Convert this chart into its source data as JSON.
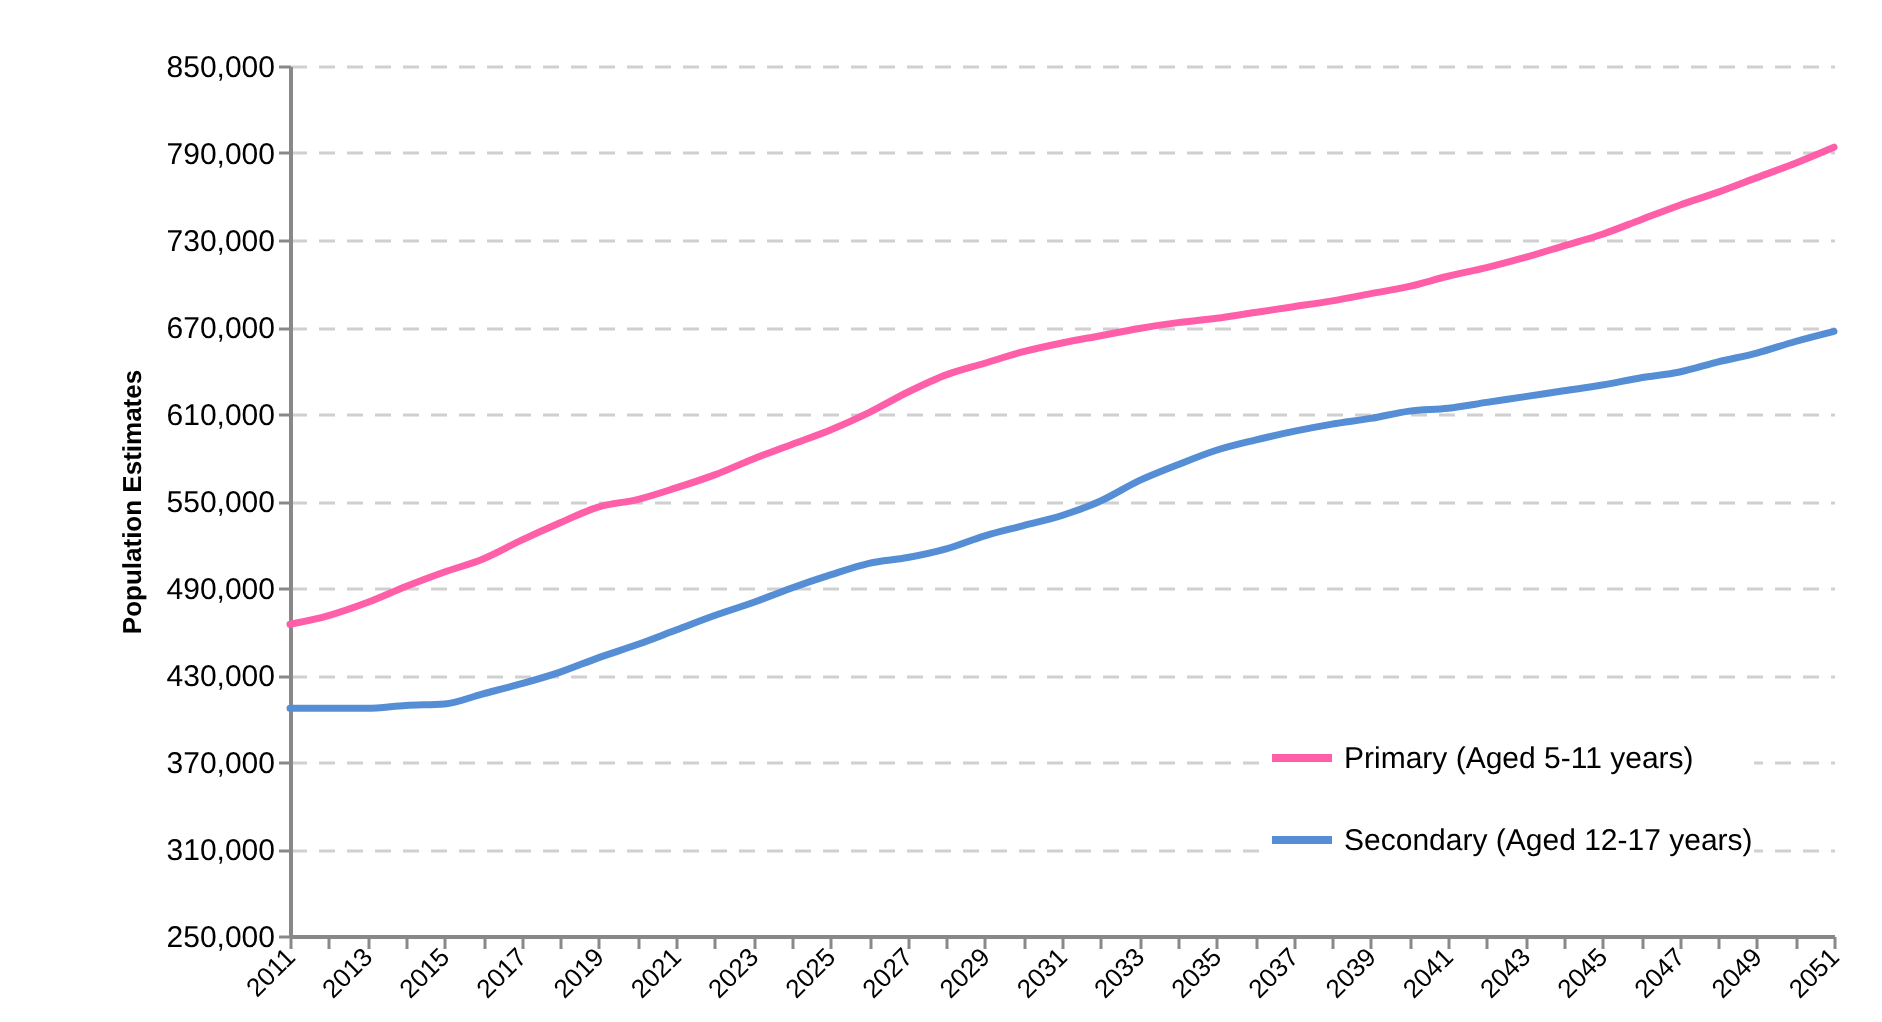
{
  "chart_data": {
    "type": "line",
    "ylabel": "Population Estimates",
    "x": [
      2011,
      2012,
      2013,
      2014,
      2015,
      2016,
      2017,
      2018,
      2019,
      2020,
      2021,
      2022,
      2023,
      2024,
      2025,
      2026,
      2027,
      2028,
      2029,
      2030,
      2031,
      2032,
      2033,
      2034,
      2035,
      2036,
      2037,
      2038,
      2039,
      2040,
      2041,
      2042,
      2043,
      2044,
      2045,
      2046,
      2047,
      2048,
      2049,
      2050,
      2051
    ],
    "series": [
      {
        "name": "Primary (Aged 5-11 years)",
        "color": "#ff5fa8",
        "values": [
          465000,
          471000,
          480000,
          491000,
          501000,
          510000,
          523000,
          535000,
          546000,
          551000,
          559000,
          568000,
          579000,
          589000,
          599000,
          611000,
          625000,
          637000,
          645000,
          653000,
          659000,
          664000,
          669000,
          673000,
          676000,
          680000,
          684000,
          688000,
          693000,
          698000,
          705000,
          711000,
          718000,
          726000,
          734000,
          744000,
          754000,
          763000,
          773000,
          783000,
          794000
        ]
      },
      {
        "name": "Secondary (Aged 12-17 years)",
        "color": "#558ed5",
        "values": [
          407000,
          407000,
          407000,
          409000,
          410000,
          417000,
          424000,
          432000,
          442000,
          451000,
          461000,
          471000,
          480000,
          490000,
          499000,
          507000,
          511000,
          517000,
          526000,
          533000,
          540000,
          550000,
          564000,
          575000,
          585000,
          592000,
          598000,
          603000,
          607000,
          612000,
          614000,
          618000,
          622000,
          626000,
          630000,
          635000,
          639000,
          646000,
          652000,
          660000,
          667000
        ]
      }
    ],
    "xlim": [
      2011,
      2051
    ],
    "xticks": [
      2011,
      {
        "value": 2012,
        "label": null
      },
      2013,
      {
        "value": 2014,
        "label": null
      },
      2015,
      {
        "value": 2016,
        "label": null
      },
      2017,
      {
        "value": 2018,
        "label": null
      },
      2019,
      {
        "value": 2020,
        "label": null
      },
      2021,
      {
        "value": 2022,
        "label": null
      },
      2023,
      {
        "value": 2024,
        "label": null
      },
      2025,
      {
        "value": 2026,
        "label": null
      },
      2027,
      {
        "value": 2028,
        "label": null
      },
      2029,
      {
        "value": 2030,
        "label": null
      },
      2031,
      {
        "value": 2032,
        "label": null
      },
      2033,
      {
        "value": 2034,
        "label": null
      },
      2035,
      {
        "value": 2036,
        "label": null
      },
      2037,
      {
        "value": 2038,
        "label": null
      },
      2039,
      {
        "value": 2040,
        "label": null
      },
      2041,
      {
        "value": 2042,
        "label": null
      },
      2043,
      {
        "value": 2044,
        "label": null
      },
      2045,
      {
        "value": 2046,
        "label": null
      },
      2047,
      {
        "value": 2048,
        "label": null
      },
      2049,
      {
        "value": 2050,
        "label": null
      },
      2051
    ],
    "ylim": [
      250000,
      850000
    ],
    "yticks": [
      {
        "value": 250000,
        "label": "250,000"
      },
      {
        "value": 310000,
        "label": "310,000"
      },
      {
        "value": 370000,
        "label": "370,000"
      },
      {
        "value": 430000,
        "label": "430,000"
      },
      {
        "value": 490000,
        "label": "490,000"
      },
      {
        "value": 550000,
        "label": "550,000"
      },
      {
        "value": 610000,
        "label": "610,000"
      },
      {
        "value": 670000,
        "label": "670,000"
      },
      {
        "value": 730000,
        "label": "730,000"
      },
      {
        "value": 790000,
        "label": "790,000"
      },
      {
        "value": 850000,
        "label": "850,000"
      }
    ],
    "grid": "y",
    "legend": "bottom right",
    "line_style": "solid"
  }
}
